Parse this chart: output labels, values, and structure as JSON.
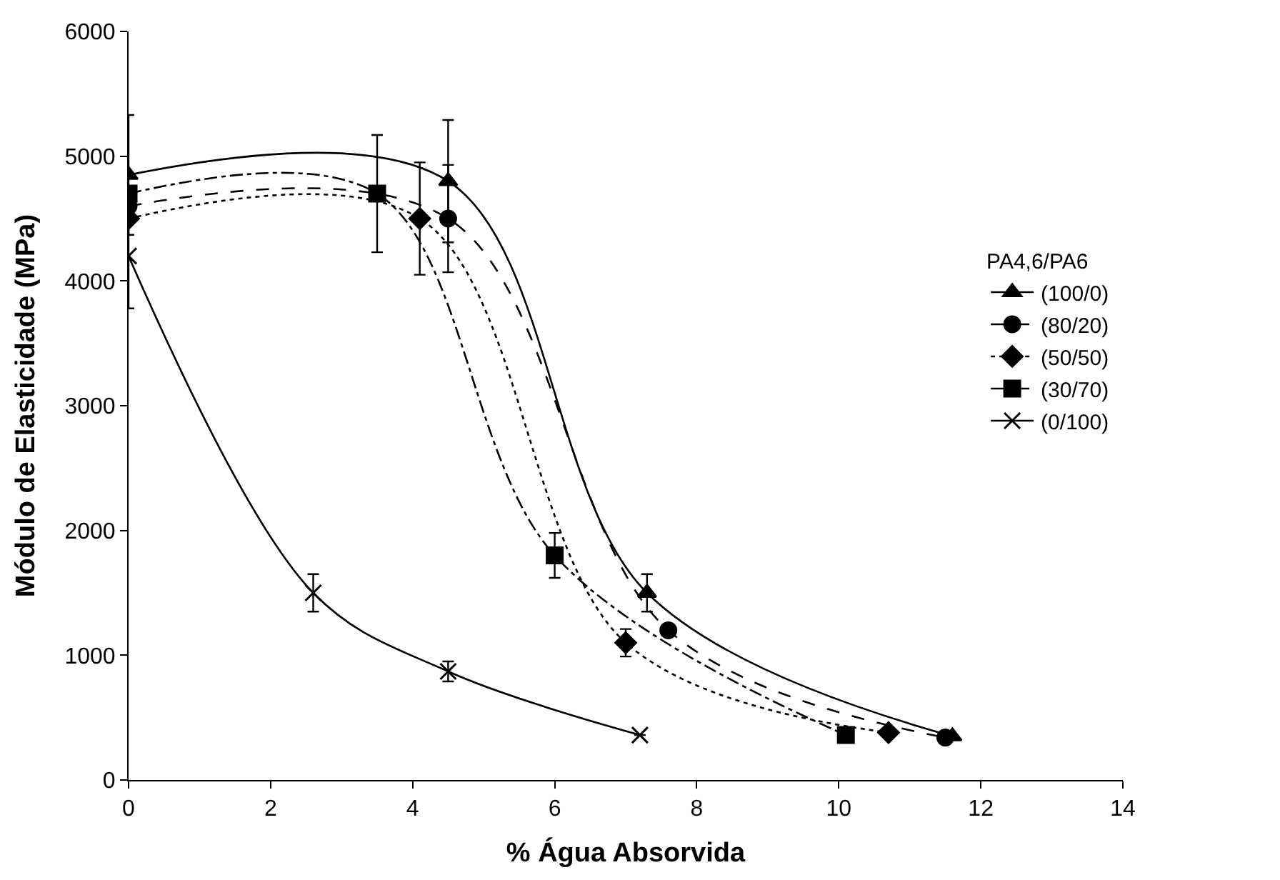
{
  "chart_data": {
    "type": "line",
    "xlabel": "% Água Absorvida",
    "ylabel": "Módulo de Elasticidade (MPa)",
    "legend_title": "PA4,6/PA6",
    "legend": "right",
    "xlim": [
      0,
      14
    ],
    "xticks": [
      0,
      2,
      4,
      6,
      8,
      10,
      12,
      14
    ],
    "ylim": [
      0,
      6000
    ],
    "yticks": [
      0,
      1000,
      2000,
      3000,
      4000,
      5000,
      6000
    ],
    "series": [
      {
        "name": "(100/0)",
        "color": "#000000",
        "marker": "triangle",
        "line_style": "solid",
        "x": [
          0,
          4.5,
          7.3,
          11.6
        ],
        "values": [
          4850,
          4800,
          1500,
          350
        ],
        "errors": [
          480,
          490,
          150,
          null
        ]
      },
      {
        "name": "(80/20)",
        "color": "#000000",
        "marker": "circle",
        "line_style": "dashed",
        "x": [
          0,
          4.5,
          7.6,
          11.5
        ],
        "values": [
          4600,
          4500,
          1200,
          340
        ],
        "errors": [
          null,
          430,
          null,
          null
        ]
      },
      {
        "name": "(50/50)",
        "color": "#000000",
        "marker": "diamond",
        "line_style": "dotted",
        "x": [
          0,
          4.1,
          7.0,
          10.7
        ],
        "values": [
          4500,
          4500,
          1100,
          380
        ],
        "errors": [
          null,
          450,
          110,
          null
        ]
      },
      {
        "name": "(30/70)",
        "color": "#000000",
        "marker": "square",
        "line_style": "dashdot",
        "x": [
          0,
          3.5,
          6.0,
          10.1
        ],
        "values": [
          4700,
          4700,
          1800,
          360
        ],
        "errors": [
          null,
          470,
          180,
          null
        ]
      },
      {
        "name": "(0/100)",
        "color": "#000000",
        "marker": "cross",
        "line_style": "solid",
        "x": [
          0,
          2.6,
          4.5,
          7.2
        ],
        "values": [
          4200,
          1500,
          870,
          360
        ],
        "errors": [
          420,
          150,
          80,
          null
        ]
      }
    ]
  }
}
